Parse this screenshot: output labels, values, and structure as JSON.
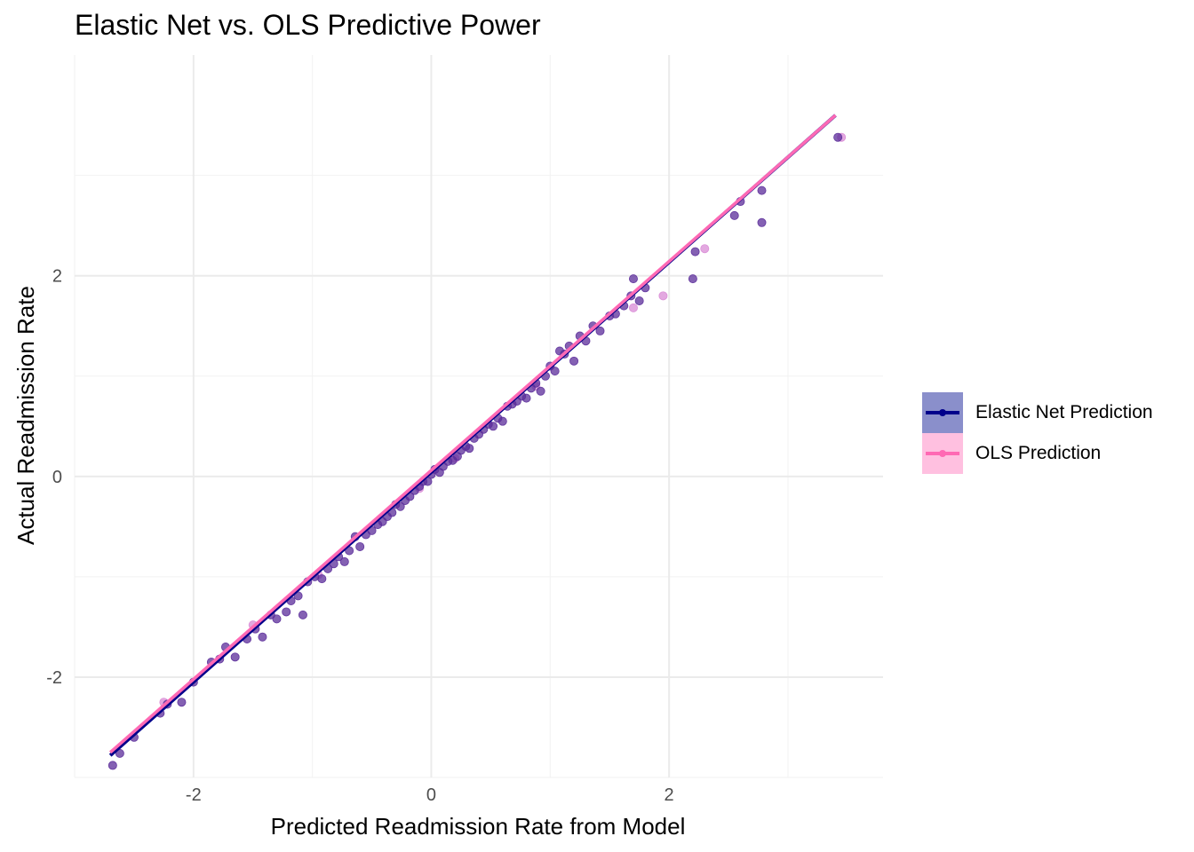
{
  "chart_data": {
    "type": "scatter",
    "title": "Elastic Net vs. OLS Predictive Power",
    "xlabel": "Predicted Readmission Rate from Model",
    "ylabel": "Actual Readmission Rate",
    "xlim": [
      -3.0,
      3.8
    ],
    "ylim": [
      -3.0,
      4.2
    ],
    "x_ticks": [
      -2,
      0,
      2
    ],
    "y_ticks": [
      -2,
      0,
      2
    ],
    "grid": true,
    "legend_position": "right",
    "series": [
      {
        "name": "Elastic Net Prediction",
        "color": "#00008B",
        "fill_color": "#8A8FCB",
        "point_color": "#5B2C9A",
        "fit_line": [
          [
            -2.7,
            -2.78
          ],
          [
            3.4,
            3.6
          ]
        ],
        "points": [
          [
            -2.68,
            -2.88
          ],
          [
            -2.62,
            -2.76
          ],
          [
            -2.5,
            -2.6
          ],
          [
            -2.28,
            -2.36
          ],
          [
            -2.22,
            -2.27
          ],
          [
            -2.1,
            -2.25
          ],
          [
            -2.0,
            -2.05
          ],
          [
            -1.85,
            -1.85
          ],
          [
            -1.78,
            -1.82
          ],
          [
            -1.73,
            -1.7
          ],
          [
            -1.65,
            -1.8
          ],
          [
            -1.55,
            -1.62
          ],
          [
            -1.48,
            -1.52
          ],
          [
            -1.42,
            -1.6
          ],
          [
            -1.35,
            -1.38
          ],
          [
            -1.3,
            -1.42
          ],
          [
            -1.22,
            -1.35
          ],
          [
            -1.18,
            -1.24
          ],
          [
            -1.12,
            -1.19
          ],
          [
            -1.08,
            -1.38
          ],
          [
            -1.04,
            -1.05
          ],
          [
            -0.98,
            -1.0
          ],
          [
            -0.92,
            -1.02
          ],
          [
            -0.87,
            -0.92
          ],
          [
            -0.82,
            -0.87
          ],
          [
            -0.78,
            -0.8
          ],
          [
            -0.73,
            -0.85
          ],
          [
            -0.69,
            -0.74
          ],
          [
            -0.64,
            -0.6
          ],
          [
            -0.6,
            -0.7
          ],
          [
            -0.55,
            -0.58
          ],
          [
            -0.5,
            -0.54
          ],
          [
            -0.45,
            -0.48
          ],
          [
            -0.41,
            -0.45
          ],
          [
            -0.37,
            -0.4
          ],
          [
            -0.33,
            -0.36
          ],
          [
            -0.3,
            -0.28
          ],
          [
            -0.26,
            -0.3
          ],
          [
            -0.22,
            -0.24
          ],
          [
            -0.18,
            -0.2
          ],
          [
            -0.14,
            -0.14
          ],
          [
            -0.1,
            -0.1
          ],
          [
            -0.07,
            -0.05
          ],
          [
            -0.03,
            -0.05
          ],
          [
            0.0,
            0.02
          ],
          [
            0.03,
            0.07
          ],
          [
            0.07,
            0.04
          ],
          [
            0.1,
            0.1
          ],
          [
            0.14,
            0.15
          ],
          [
            0.18,
            0.16
          ],
          [
            0.22,
            0.2
          ],
          [
            0.25,
            0.26
          ],
          [
            0.29,
            0.3
          ],
          [
            0.32,
            0.28
          ],
          [
            0.36,
            0.38
          ],
          [
            0.4,
            0.42
          ],
          [
            0.44,
            0.47
          ],
          [
            0.48,
            0.52
          ],
          [
            0.52,
            0.5
          ],
          [
            0.56,
            0.58
          ],
          [
            0.6,
            0.55
          ],
          [
            0.64,
            0.7
          ],
          [
            0.68,
            0.72
          ],
          [
            0.72,
            0.75
          ],
          [
            0.76,
            0.8
          ],
          [
            0.8,
            0.78
          ],
          [
            0.84,
            0.88
          ],
          [
            0.88,
            0.93
          ],
          [
            0.92,
            0.85
          ],
          [
            0.96,
            1.0
          ],
          [
            1.0,
            1.1
          ],
          [
            1.04,
            1.05
          ],
          [
            1.08,
            1.25
          ],
          [
            1.12,
            1.22
          ],
          [
            1.16,
            1.3
          ],
          [
            1.2,
            1.15
          ],
          [
            1.25,
            1.4
          ],
          [
            1.3,
            1.35
          ],
          [
            1.36,
            1.5
          ],
          [
            1.42,
            1.45
          ],
          [
            1.5,
            1.6
          ],
          [
            1.55,
            1.62
          ],
          [
            1.62,
            1.7
          ],
          [
            1.68,
            1.8
          ],
          [
            1.7,
            1.97
          ],
          [
            1.8,
            1.88
          ],
          [
            1.75,
            1.75
          ],
          [
            2.2,
            1.97
          ],
          [
            2.22,
            2.24
          ],
          [
            2.55,
            2.6
          ],
          [
            2.6,
            2.74
          ],
          [
            2.78,
            2.85
          ],
          [
            2.78,
            2.53
          ],
          [
            3.42,
            3.38
          ]
        ]
      },
      {
        "name": "OLS Prediction",
        "color": "#FF69B4",
        "fill_color": "#FFC0E0",
        "point_color": "#D98BD6",
        "fit_line": [
          [
            -2.7,
            -2.75
          ],
          [
            3.4,
            3.6
          ]
        ],
        "points": [
          [
            -2.25,
            -2.25
          ],
          [
            -1.5,
            -1.48
          ],
          [
            -0.95,
            -0.98
          ],
          [
            -0.1,
            -0.12
          ],
          [
            0.2,
            0.18
          ],
          [
            0.88,
            0.9
          ],
          [
            1.7,
            1.68
          ],
          [
            1.95,
            1.8
          ],
          [
            2.3,
            2.27
          ],
          [
            3.45,
            3.38
          ]
        ]
      }
    ]
  }
}
